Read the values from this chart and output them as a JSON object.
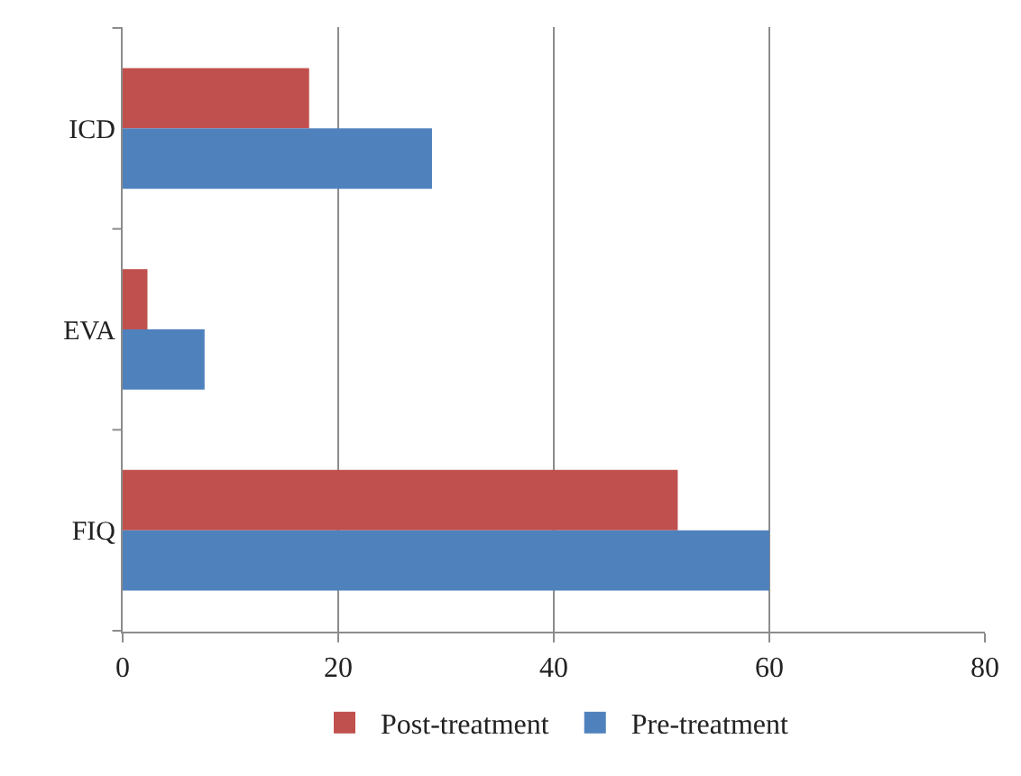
{
  "chart_data": {
    "type": "bar",
    "orientation": "horizontal",
    "categories": [
      "ICD",
      "EVA",
      "FIQ"
    ],
    "series": [
      {
        "name": "Post-treatment",
        "color": "#c0504d",
        "values": [
          17.3,
          2.3,
          51.5
        ]
      },
      {
        "name": "Pre-treatment",
        "color": "#4f81bd",
        "values": [
          28.7,
          7.6,
          60
        ]
      }
    ],
    "xlim": [
      0,
      80
    ],
    "xticks": [
      0,
      20,
      40,
      60,
      80
    ],
    "grid": "x",
    "legend": "bottom"
  }
}
